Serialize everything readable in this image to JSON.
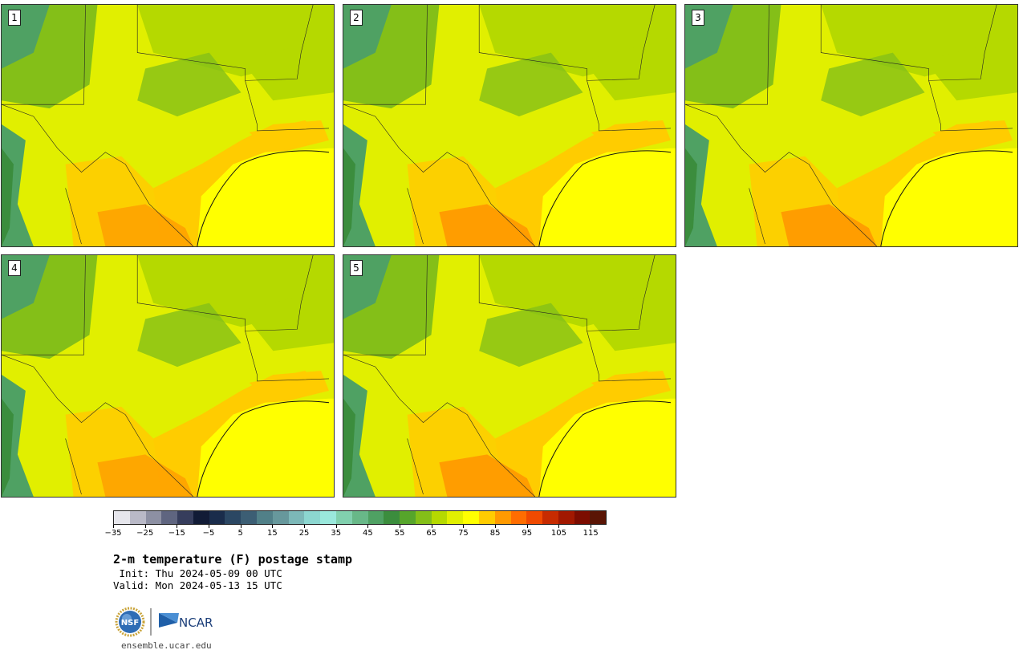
{
  "panels": [
    {
      "number": "1"
    },
    {
      "number": "2"
    },
    {
      "number": "3"
    },
    {
      "number": "4"
    },
    {
      "number": "5"
    }
  ],
  "colorbar": {
    "colors": [
      "#e6e6ec",
      "#b9b9c7",
      "#8d90a3",
      "#5f6580",
      "#363d5c",
      "#111b36",
      "#1a2c4b",
      "#2b4763",
      "#3c5e74",
      "#518088",
      "#67989c",
      "#7cb8b8",
      "#8cd6d0",
      "#9ae8dc",
      "#81d0ae",
      "#68b888",
      "#4fa163",
      "#3b8d3d",
      "#56a52b",
      "#84bf18",
      "#b5d900",
      "#e1ef00",
      "#ffff00",
      "#ffcc00",
      "#ff9a00",
      "#ff6d00",
      "#f04a00",
      "#c72b00",
      "#a21800",
      "#7c0c00",
      "#5a1505"
    ],
    "tick_labels": [
      "−35",
      "−25",
      "−15",
      "−5",
      "5",
      "15",
      "25",
      "35",
      "45",
      "55",
      "65",
      "75",
      "85",
      "95",
      "105",
      "115"
    ]
  },
  "title": "2-m temperature (F) postage stamp",
  "init": " Init: Thu 2024-05-09 00 UTC",
  "valid": "Valid: Mon 2024-05-13 15 UTC",
  "logos": {
    "nsf": "NSF",
    "ncar": "NCAR"
  },
  "footer_url": "ensemble.ucar.edu"
}
